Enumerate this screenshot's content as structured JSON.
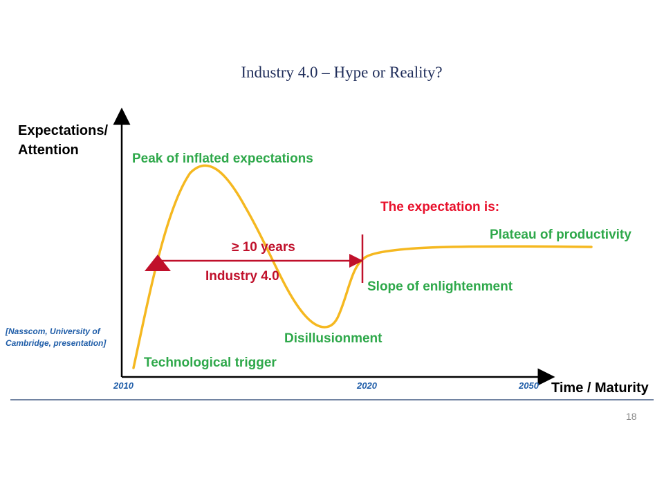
{
  "title": "Industry 4.0 – Hype or Reality?",
  "axes": {
    "y_label_line1": "Expectations/",
    "y_label_line2": "Attention",
    "x_label": "Time / Maturity",
    "x_ticks": [
      "2010",
      "2020",
      "2050"
    ]
  },
  "phases": {
    "trigger": "Technological trigger",
    "peak": "Peak of inflated expectations",
    "trough": "Disillusionment",
    "slope": "Slope of enlightenment",
    "plateau": "Plateau of productivity"
  },
  "annotations": {
    "expectation": "The expectation is:",
    "duration": "≥ 10 years",
    "position_label": "Industry 4.0"
  },
  "source": {
    "line1": "[Nasscom, University of",
    "line2": "Cambridge, presentation]"
  },
  "page_number": "18",
  "colors": {
    "curve": "#f5b820",
    "axes": "#000000",
    "green_text": "#2ea84a",
    "red_marker": "#c0102b",
    "expectation_text": "#e8102b",
    "year_text": "#1f5da8",
    "title_text": "#1f2d5a",
    "footer_rule": "#1f3a6a"
  }
}
